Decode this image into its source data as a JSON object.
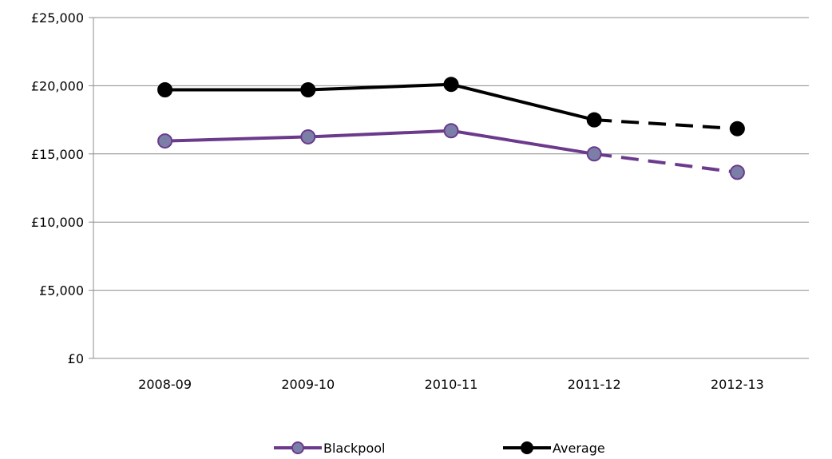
{
  "chart_data": {
    "type": "line",
    "categories": [
      "2008-09",
      "2009-10",
      "2010-11",
      "2011-12",
      "2012-13"
    ],
    "ylim": [
      0,
      25000
    ],
    "yticks": [
      {
        "value": 0,
        "label": "£0"
      },
      {
        "value": 5000,
        "label": "£5,000"
      },
      {
        "value": 10000,
        "label": "£10,000"
      },
      {
        "value": 15000,
        "label": "£15,000"
      },
      {
        "value": 20000,
        "label": "£20,000"
      },
      {
        "value": 25000,
        "label": "£25,000"
      }
    ],
    "grid": true,
    "legend_position": "bottom",
    "series": [
      {
        "name": "Blackpool",
        "values": [
          15950,
          16250,
          16700,
          15000,
          13650
        ],
        "dashed_from_index": 3,
        "line_color": "#6b3a8c",
        "marker_fill": "#7b7fa8",
        "marker_stroke": "#6b3a8c"
      },
      {
        "name": "Average",
        "values": [
          19700,
          19700,
          20100,
          17500,
          16850
        ],
        "dashed_from_index": 3,
        "line_color": "#000000",
        "marker_fill": "#000000",
        "marker_stroke": "#000000"
      }
    ]
  }
}
